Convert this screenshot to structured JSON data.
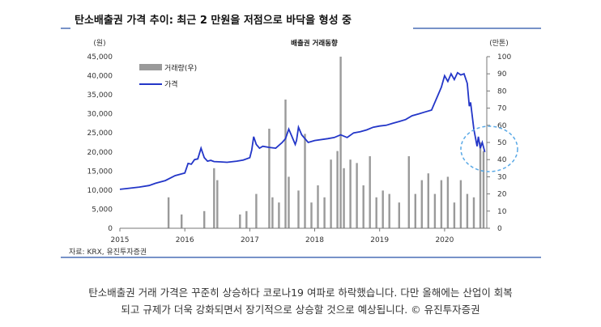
{
  "colors": {
    "header_line": "#4a6fb5",
    "line_series": "#2336c8",
    "bar_series": "#9a9a9a",
    "circle": "#5aa9e6"
  },
  "caption": {
    "line1": "탄소배출권 거래 가격은 꾸준히 상승하다 코로나19 여파로 하락했습니다. 다만 올해에는 산업이 회복",
    "line2": "되고 규제가 더욱 강화되면서 장기적으로 상승할 것으로 예상됩니다. © 유진투자증권"
  },
  "chart_data": {
    "type": "line",
    "title": "탄소배출권 가격 추이: 최근 2 만원을 저점으로 바닥을 형성 중",
    "subtitle": "배출권 거래동향",
    "source": "자료: KRX, 유진투자증권",
    "left_unit": "(원)",
    "right_unit": "(만톤)",
    "y_left_ticks": [
      "45,000",
      "40,000",
      "35,000",
      "30,000",
      "25,000",
      "20,000",
      "15,000",
      "10,000",
      "5,000",
      "0"
    ],
    "y_right_ticks": [
      "100",
      "90",
      "80",
      "70",
      "60",
      "50",
      "40",
      "30",
      "20",
      "10",
      "0"
    ],
    "x_ticks": [
      "2015",
      "2016",
      "2017",
      "2018",
      "2019",
      "2020"
    ],
    "ylim_left": [
      0,
      45000
    ],
    "ylim_right": [
      0,
      100
    ],
    "xlim": [
      2015.0,
      2020.65
    ],
    "legend_position": "top-left",
    "series": [
      {
        "name": "거래량(우)",
        "kind": "bar",
        "axis": "right",
        "values": [
          [
            2015.75,
            18
          ],
          [
            2015.95,
            8
          ],
          [
            2016.3,
            10
          ],
          [
            2016.45,
            35
          ],
          [
            2016.5,
            28
          ],
          [
            2016.85,
            8
          ],
          [
            2016.95,
            10
          ],
          [
            2017.1,
            20
          ],
          [
            2017.3,
            58
          ],
          [
            2017.35,
            18
          ],
          [
            2017.45,
            15
          ],
          [
            2017.55,
            75
          ],
          [
            2017.6,
            30
          ],
          [
            2017.75,
            22
          ],
          [
            2017.85,
            55
          ],
          [
            2017.95,
            15
          ],
          [
            2018.05,
            25
          ],
          [
            2018.15,
            18
          ],
          [
            2018.25,
            40
          ],
          [
            2018.35,
            45
          ],
          [
            2018.4,
            100
          ],
          [
            2018.45,
            35
          ],
          [
            2018.55,
            40
          ],
          [
            2018.65,
            38
          ],
          [
            2018.75,
            25
          ],
          [
            2018.85,
            42
          ],
          [
            2018.95,
            18
          ],
          [
            2019.05,
            22
          ],
          [
            2019.15,
            20
          ],
          [
            2019.3,
            15
          ],
          [
            2019.45,
            42
          ],
          [
            2019.55,
            20
          ],
          [
            2019.65,
            28
          ],
          [
            2019.75,
            32
          ],
          [
            2019.85,
            20
          ],
          [
            2019.95,
            28
          ],
          [
            2020.05,
            30
          ],
          [
            2020.15,
            15
          ],
          [
            2020.25,
            28
          ],
          [
            2020.35,
            20
          ],
          [
            2020.45,
            18
          ],
          [
            2020.55,
            50
          ],
          [
            2020.6,
            45
          ]
        ]
      },
      {
        "name": "가격",
        "kind": "line",
        "axis": "left",
        "x": [
          2015.0,
          2015.1,
          2015.3,
          2015.45,
          2015.55,
          2015.7,
          2015.85,
          2016.0,
          2016.05,
          2016.1,
          2016.15,
          2016.2,
          2016.25,
          2016.3,
          2016.35,
          2016.4,
          2016.45,
          2016.55,
          2016.65,
          2016.8,
          2016.9,
          2017.0,
          2017.03,
          2017.06,
          2017.1,
          2017.15,
          2017.2,
          2017.3,
          2017.4,
          2017.5,
          2017.55,
          2017.6,
          2017.65,
          2017.7,
          2017.72,
          2017.75,
          2017.8,
          2017.9,
          2018.0,
          2018.2,
          2018.3,
          2018.4,
          2018.5,
          2018.6,
          2018.7,
          2018.8,
          2018.9,
          2019.0,
          2019.1,
          2019.2,
          2019.3,
          2019.4,
          2019.5,
          2019.6,
          2019.7,
          2019.8,
          2019.9,
          2019.95,
          2020.0,
          2020.05,
          2020.1,
          2020.15,
          2020.2,
          2020.25,
          2020.3,
          2020.35,
          2020.38,
          2020.4,
          2020.45,
          2020.5,
          2020.52,
          2020.55,
          2020.58,
          2020.62
        ],
        "values": [
          10200,
          10400,
          10800,
          11200,
          11800,
          12500,
          13800,
          14500,
          17000,
          16800,
          18000,
          18200,
          21000,
          18500,
          17600,
          17800,
          17500,
          17400,
          17300,
          17600,
          17900,
          18500,
          20500,
          24000,
          22000,
          21000,
          21500,
          21200,
          21000,
          22500,
          23500,
          26000,
          24000,
          22000,
          23000,
          26500,
          24500,
          22500,
          23000,
          23500,
          23800,
          24500,
          23800,
          25000,
          25300,
          25800,
          26500,
          26800,
          27000,
          27500,
          28000,
          28500,
          29500,
          30000,
          30500,
          31000,
          35000,
          37000,
          40000,
          38500,
          40500,
          39000,
          40800,
          40200,
          40500,
          38000,
          32000,
          33000,
          26000,
          21500,
          24000,
          21000,
          22500,
          20000
        ]
      }
    ]
  }
}
